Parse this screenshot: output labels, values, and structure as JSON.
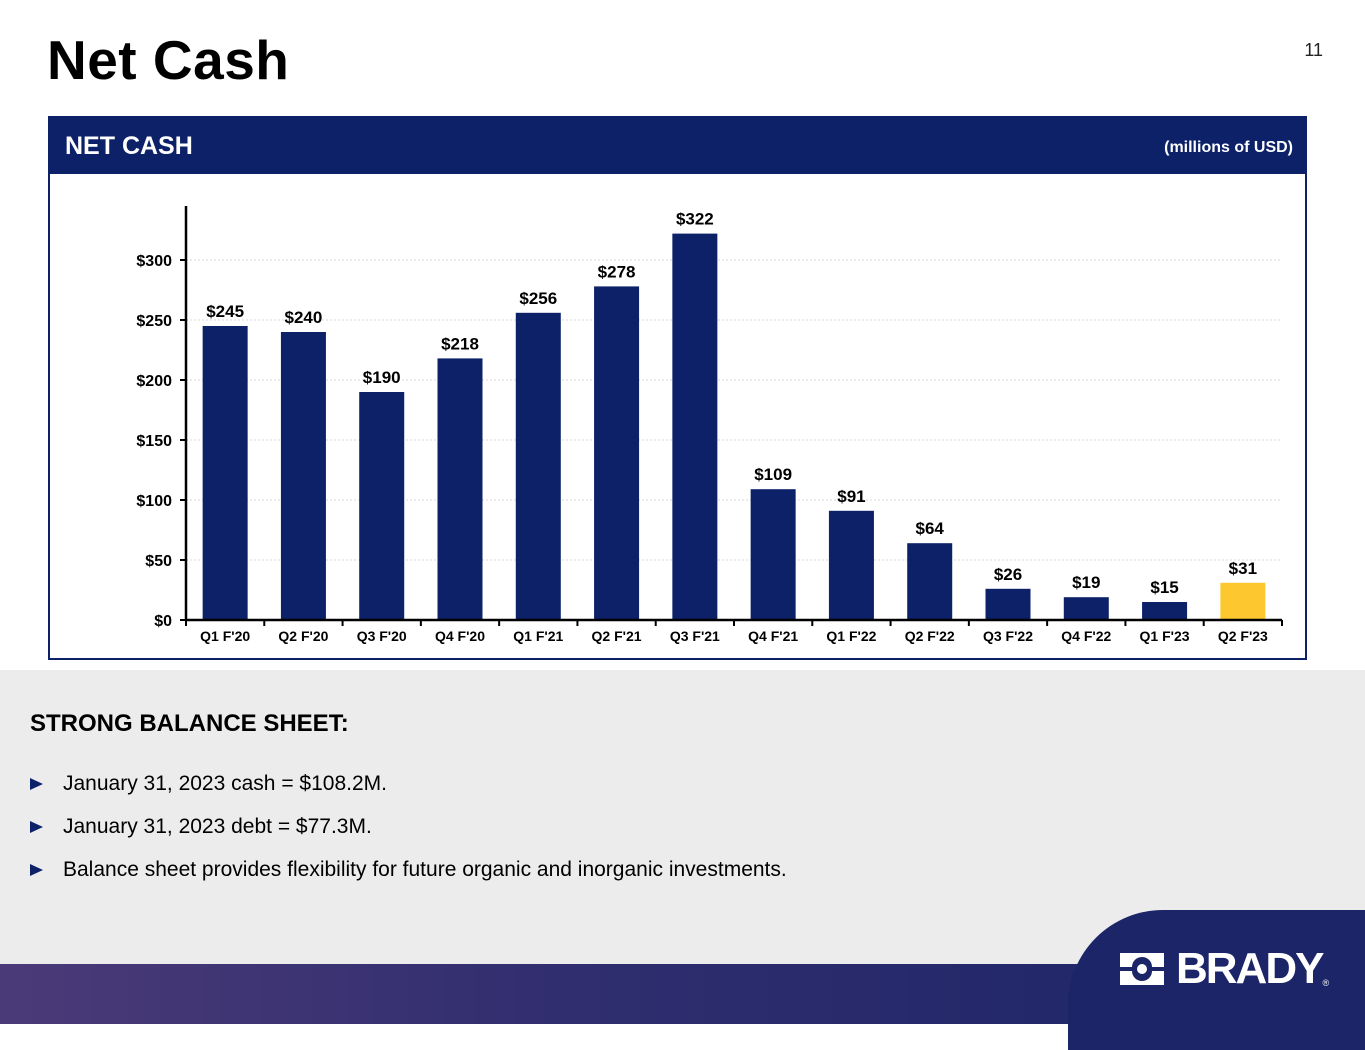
{
  "slide": {
    "title": "Net Cash",
    "page_number": "11"
  },
  "panel": {
    "title": "NET CASH",
    "units": "(millions of USD)"
  },
  "chart_data": {
    "type": "bar",
    "title": "NET CASH",
    "ylabel": "millions of USD",
    "categories": [
      "Q1 F'20",
      "Q2 F'20",
      "Q3 F'20",
      "Q4 F'20",
      "Q1 F'21",
      "Q2 F'21",
      "Q3 F'21",
      "Q4 F'21",
      "Q1 F'22",
      "Q2 F'22",
      "Q3 F'22",
      "Q4 F'22",
      "Q1 F'23",
      "Q2 F'23"
    ],
    "values": [
      245,
      240,
      190,
      218,
      256,
      278,
      322,
      109,
      91,
      64,
      26,
      19,
      15,
      31
    ],
    "data_labels": [
      "$245",
      "$240",
      "$190",
      "$218",
      "$256",
      "$278",
      "$322",
      "$109",
      "$91",
      "$64",
      "$26",
      "$19",
      "$15",
      "$31"
    ],
    "ylim": [
      0,
      345
    ],
    "yticks": [
      0,
      50,
      100,
      150,
      200,
      250,
      300
    ],
    "ytick_labels": [
      "$0",
      "$50",
      "$100",
      "$150",
      "$200",
      "$250",
      "$300"
    ],
    "grid": true,
    "colors": {
      "default": "#0d2169",
      "highlight": "#fdc82f",
      "grid": "#d9d9d9",
      "axis": "#000000"
    },
    "highlight_index": 13
  },
  "takeaways": {
    "heading": "STRONG BALANCE SHEET:",
    "items": [
      "January 31, 2023 cash = $108.2M.",
      "January 31, 2023 debt = $77.3M.",
      "Balance sheet provides flexibility for future organic and inorganic investments."
    ]
  },
  "logo": {
    "text": "BRADY",
    "registered": "®"
  },
  "colors": {
    "brand_navy": "#0d2169",
    "background_gray": "#ececec",
    "highlight_gold": "#fdc82f"
  }
}
